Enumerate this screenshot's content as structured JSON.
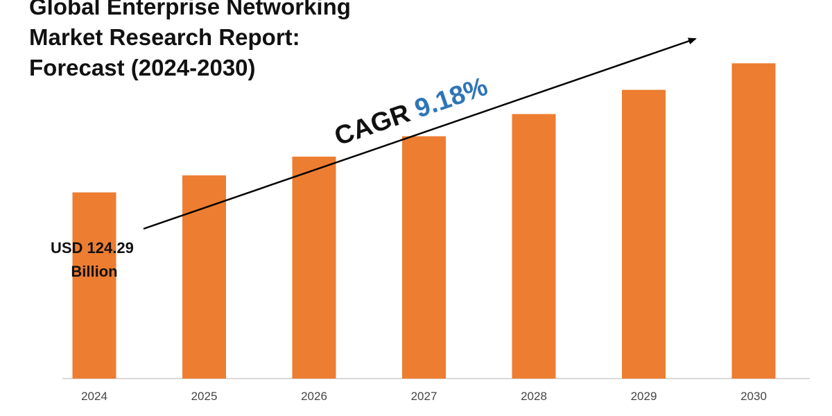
{
  "chart_data": {
    "type": "bar",
    "title_lines": [
      "Global Enterprise Networking",
      "Market Research Report:",
      "Forecast (2024-2030)"
    ],
    "categories": [
      "2024",
      "2025",
      "2026",
      "2027",
      "2028",
      "2029",
      "2030"
    ],
    "values": [
      124.29,
      135.7,
      148.2,
      161.8,
      176.6,
      192.8,
      210.5
    ],
    "ylim": [
      0,
      225
    ],
    "grid": false,
    "legend": "none",
    "annotations": {
      "cagr_prefix": "CAGR ",
      "cagr_value": "9.18%",
      "start_value_lines": [
        "USD 124.29",
        "Billion"
      ]
    }
  },
  "colors": {
    "bar": "#ed7d31",
    "cagr_value": "#2e75b6",
    "text": "#111111",
    "axis": "#d9d9d9",
    "arrow": "#000000"
  }
}
